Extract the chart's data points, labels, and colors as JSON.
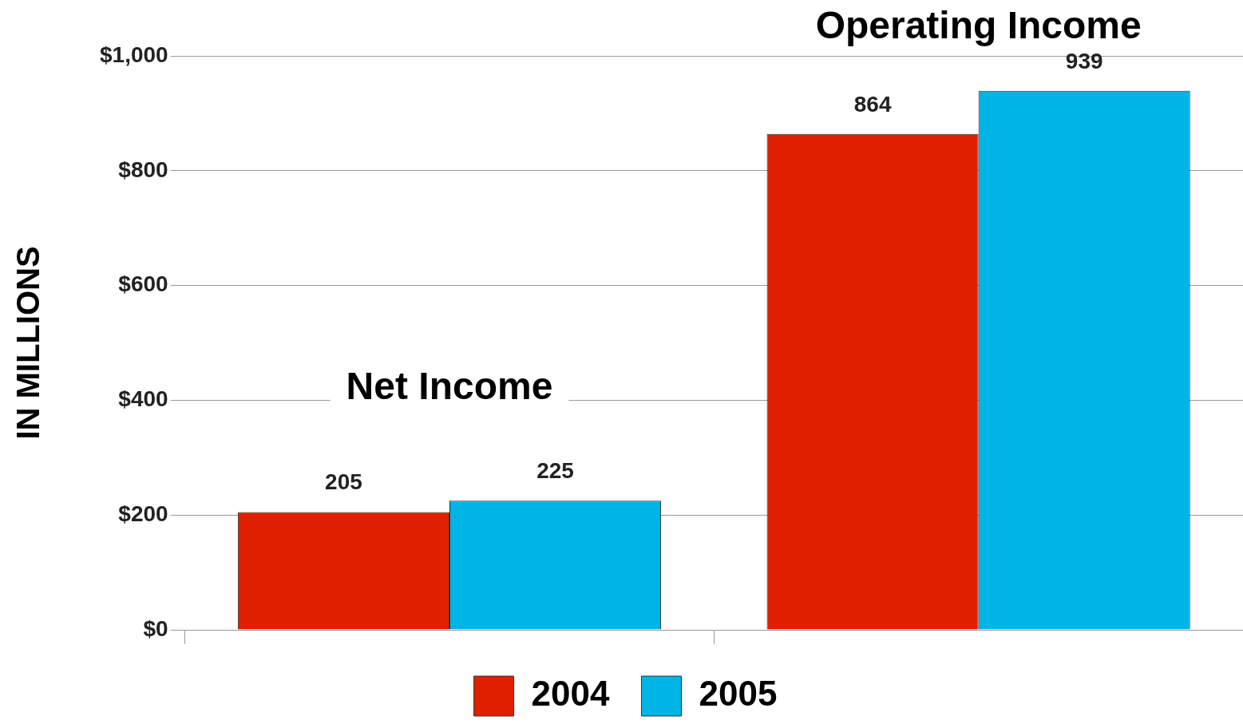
{
  "chart_data": {
    "type": "bar",
    "categories": [
      "Net Income",
      "Operating Income"
    ],
    "series": [
      {
        "name": "2004",
        "color": "#e02000",
        "values": [
          205,
          864
        ]
      },
      {
        "name": "2005",
        "color": "#00b4e6",
        "values": [
          225,
          939
        ]
      }
    ],
    "ylabel": "IN MILLIONS",
    "ylim": [
      0,
      1000
    ],
    "yticks": [
      {
        "value": 0,
        "label": "$0"
      },
      {
        "value": 200,
        "label": "$200"
      },
      {
        "value": 400,
        "label": "$400"
      },
      {
        "value": 600,
        "label": "$600"
      },
      {
        "value": 800,
        "label": "$800"
      },
      {
        "value": 1000,
        "label": "$1,000"
      }
    ],
    "grid": "y",
    "legend": "bottom",
    "data_labels": true
  }
}
